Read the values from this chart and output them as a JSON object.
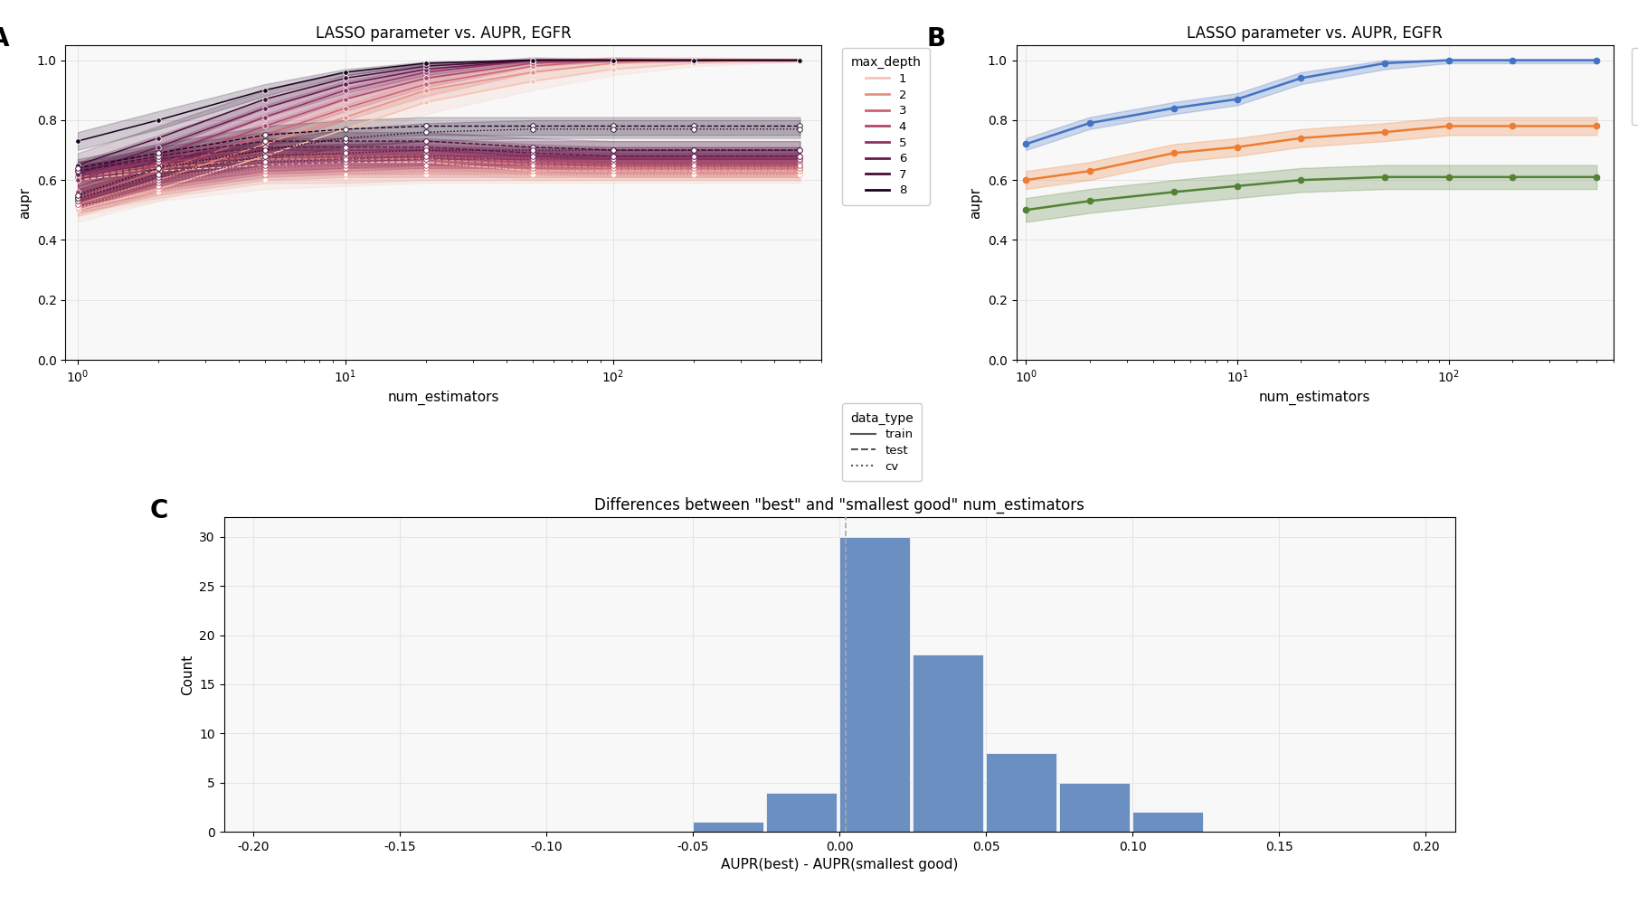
{
  "title_A": "LASSO parameter vs. AUPR, EGFR",
  "title_B": "LASSO parameter vs. AUPR, EGFR",
  "title_C": "Differences between \"best\" and \"smallest good\" num_estimators",
  "xlabel_AB": "num_estimators",
  "ylabel_AB": "aupr",
  "xlabel_C": "AUPR(best) - AUPR(smallest good)",
  "ylabel_C": "Count",
  "num_estimators": [
    1,
    2,
    5,
    10,
    20,
    50,
    100,
    200,
    500
  ],
  "max_depths": [
    1,
    2,
    3,
    4,
    5,
    6,
    7,
    8
  ],
  "depth_colors": [
    "#f5c5b5",
    "#e89080",
    "#d06070",
    "#b04868",
    "#903060",
    "#6a1850",
    "#450d38",
    "#1a0020"
  ],
  "train_data": {
    "1": [
      0.5,
      0.57,
      0.68,
      0.77,
      0.86,
      0.93,
      0.97,
      0.99,
      1.0
    ],
    "2": [
      0.52,
      0.6,
      0.72,
      0.81,
      0.9,
      0.96,
      0.99,
      1.0,
      1.0
    ],
    "3": [
      0.54,
      0.63,
      0.75,
      0.84,
      0.92,
      0.98,
      1.0,
      1.0,
      1.0
    ],
    "4": [
      0.56,
      0.65,
      0.78,
      0.87,
      0.94,
      0.99,
      1.0,
      1.0,
      1.0
    ],
    "5": [
      0.6,
      0.68,
      0.81,
      0.9,
      0.96,
      1.0,
      1.0,
      1.0,
      1.0
    ],
    "6": [
      0.62,
      0.71,
      0.84,
      0.92,
      0.97,
      1.0,
      1.0,
      1.0,
      1.0
    ],
    "7": [
      0.65,
      0.74,
      0.87,
      0.94,
      0.98,
      1.0,
      1.0,
      1.0,
      1.0
    ],
    "8": [
      0.73,
      0.8,
      0.9,
      0.96,
      0.99,
      1.0,
      1.0,
      1.0,
      1.0
    ]
  },
  "test_data": {
    "1": [
      0.6,
      0.63,
      0.65,
      0.66,
      0.66,
      0.63,
      0.63,
      0.63,
      0.63
    ],
    "2": [
      0.61,
      0.64,
      0.67,
      0.67,
      0.67,
      0.65,
      0.64,
      0.64,
      0.64
    ],
    "3": [
      0.61,
      0.65,
      0.68,
      0.68,
      0.68,
      0.66,
      0.65,
      0.65,
      0.65
    ],
    "4": [
      0.62,
      0.66,
      0.69,
      0.69,
      0.69,
      0.67,
      0.66,
      0.66,
      0.66
    ],
    "5": [
      0.62,
      0.66,
      0.7,
      0.7,
      0.7,
      0.68,
      0.67,
      0.67,
      0.67
    ],
    "6": [
      0.63,
      0.67,
      0.71,
      0.71,
      0.71,
      0.69,
      0.68,
      0.68,
      0.68
    ],
    "7": [
      0.63,
      0.68,
      0.73,
      0.73,
      0.73,
      0.71,
      0.7,
      0.7,
      0.7
    ],
    "8": [
      0.64,
      0.69,
      0.75,
      0.77,
      0.78,
      0.78,
      0.78,
      0.78,
      0.78
    ]
  },
  "cv_data": {
    "1": [
      0.51,
      0.56,
      0.6,
      0.61,
      0.62,
      0.62,
      0.62,
      0.62,
      0.62
    ],
    "2": [
      0.52,
      0.57,
      0.62,
      0.62,
      0.63,
      0.63,
      0.63,
      0.63,
      0.63
    ],
    "3": [
      0.52,
      0.58,
      0.63,
      0.64,
      0.64,
      0.64,
      0.64,
      0.64,
      0.64
    ],
    "4": [
      0.53,
      0.59,
      0.64,
      0.65,
      0.65,
      0.65,
      0.65,
      0.65,
      0.65
    ],
    "5": [
      0.53,
      0.6,
      0.65,
      0.66,
      0.67,
      0.67,
      0.67,
      0.67,
      0.67
    ],
    "6": [
      0.54,
      0.61,
      0.66,
      0.67,
      0.68,
      0.68,
      0.68,
      0.68,
      0.68
    ],
    "7": [
      0.54,
      0.62,
      0.68,
      0.69,
      0.7,
      0.7,
      0.7,
      0.7,
      0.7
    ],
    "8": [
      0.55,
      0.64,
      0.7,
      0.74,
      0.76,
      0.77,
      0.77,
      0.77,
      0.77
    ]
  },
  "train_band": {
    "1": [
      0.04,
      0.04,
      0.04,
      0.04,
      0.04,
      0.03,
      0.02,
      0.01,
      0.005
    ],
    "2": [
      0.04,
      0.04,
      0.04,
      0.04,
      0.04,
      0.03,
      0.02,
      0.01,
      0.005
    ],
    "3": [
      0.04,
      0.04,
      0.04,
      0.04,
      0.04,
      0.02,
      0.01,
      0.005,
      0.002
    ],
    "4": [
      0.04,
      0.04,
      0.04,
      0.04,
      0.03,
      0.01,
      0.005,
      0.002,
      0.001
    ],
    "5": [
      0.04,
      0.04,
      0.04,
      0.03,
      0.02,
      0.01,
      0.005,
      0.002,
      0.001
    ],
    "6": [
      0.04,
      0.04,
      0.03,
      0.03,
      0.02,
      0.005,
      0.002,
      0.001,
      0.001
    ],
    "7": [
      0.04,
      0.04,
      0.03,
      0.02,
      0.01,
      0.005,
      0.002,
      0.001,
      0.001
    ],
    "8": [
      0.03,
      0.03,
      0.02,
      0.01,
      0.005,
      0.002,
      0.001,
      0.001,
      0.001
    ]
  },
  "test_band": {
    "1": [
      0.03,
      0.03,
      0.03,
      0.03,
      0.03,
      0.03,
      0.03,
      0.03,
      0.03
    ],
    "2": [
      0.03,
      0.03,
      0.03,
      0.03,
      0.03,
      0.03,
      0.03,
      0.03,
      0.03
    ],
    "3": [
      0.03,
      0.03,
      0.03,
      0.03,
      0.03,
      0.03,
      0.03,
      0.03,
      0.03
    ],
    "4": [
      0.03,
      0.03,
      0.03,
      0.03,
      0.03,
      0.03,
      0.03,
      0.03,
      0.03
    ],
    "5": [
      0.03,
      0.03,
      0.03,
      0.03,
      0.03,
      0.03,
      0.03,
      0.03,
      0.03
    ],
    "6": [
      0.03,
      0.03,
      0.03,
      0.03,
      0.03,
      0.03,
      0.03,
      0.03,
      0.03
    ],
    "7": [
      0.03,
      0.03,
      0.03,
      0.03,
      0.03,
      0.03,
      0.03,
      0.03,
      0.03
    ],
    "8": [
      0.03,
      0.03,
      0.03,
      0.03,
      0.03,
      0.03,
      0.03,
      0.03,
      0.03
    ]
  },
  "panel_B": {
    "x": [
      1,
      2,
      5,
      10,
      20,
      50,
      100,
      200,
      500
    ],
    "tcga_train_mean": [
      0.72,
      0.79,
      0.84,
      0.87,
      0.94,
      0.99,
      1.0,
      1.0,
      1.0
    ],
    "tcga_train_lo": [
      0.7,
      0.77,
      0.82,
      0.85,
      0.92,
      0.97,
      0.99,
      0.99,
      0.99
    ],
    "tcga_train_hi": [
      0.74,
      0.81,
      0.86,
      0.89,
      0.96,
      1.0,
      1.0,
      1.0,
      1.0
    ],
    "tcga_test_mean": [
      0.6,
      0.63,
      0.69,
      0.71,
      0.74,
      0.76,
      0.78,
      0.78,
      0.78
    ],
    "tcga_test_lo": [
      0.57,
      0.6,
      0.66,
      0.68,
      0.71,
      0.73,
      0.75,
      0.75,
      0.75
    ],
    "tcga_test_hi": [
      0.63,
      0.66,
      0.72,
      0.74,
      0.77,
      0.79,
      0.81,
      0.81,
      0.81
    ],
    "ccle_mean": [
      0.5,
      0.53,
      0.56,
      0.58,
      0.6,
      0.61,
      0.61,
      0.61,
      0.61
    ],
    "ccle_lo": [
      0.46,
      0.49,
      0.52,
      0.54,
      0.56,
      0.57,
      0.57,
      0.57,
      0.57
    ],
    "ccle_hi": [
      0.54,
      0.57,
      0.6,
      0.62,
      0.64,
      0.65,
      0.65,
      0.65,
      0.65
    ],
    "tcga_train_color": "#4472c4",
    "tcga_test_color": "#ed7d31",
    "ccle_color": "#548235"
  },
  "hist_bins": [
    -0.2,
    -0.175,
    -0.15,
    -0.125,
    -0.1,
    -0.075,
    -0.05,
    -0.025,
    0.0,
    0.025,
    0.05,
    0.075,
    0.1,
    0.125,
    0.15,
    0.175,
    0.2
  ],
  "hist_counts": [
    0,
    0,
    0,
    0,
    0,
    0,
    1,
    4,
    30,
    18,
    8,
    5,
    2,
    0,
    0,
    0
  ],
  "hist_color": "#6b8fc0",
  "vline_x": 0.002,
  "background_color": "#ffffff",
  "panel_bg": "#f0f0f0"
}
